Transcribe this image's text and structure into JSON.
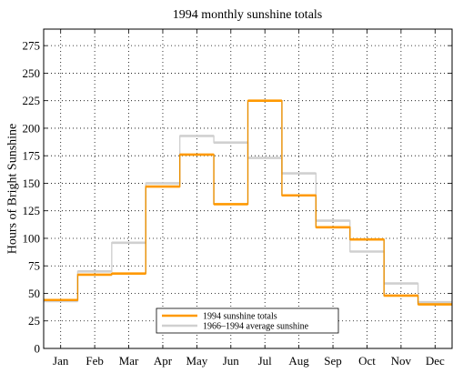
{
  "chart_data": {
    "type": "line",
    "step": true,
    "title": "1994 monthly sunshine totals",
    "xlabel": "",
    "ylabel": "Hours of Bright Sunshine",
    "categories": [
      "Jan",
      "Feb",
      "Mar",
      "Apr",
      "May",
      "Jun",
      "Jul",
      "Aug",
      "Sep",
      "Oct",
      "Nov",
      "Dec"
    ],
    "ylim": [
      0,
      290
    ],
    "yticks": [
      0,
      25,
      50,
      75,
      100,
      125,
      150,
      175,
      200,
      225,
      250,
      275
    ],
    "grid": true,
    "legend_position": "bottom-center",
    "series": [
      {
        "name": "1994 sunshine totals",
        "color": "#ff9900",
        "values": [
          44,
          67,
          68,
          147,
          176,
          131,
          225,
          139,
          110,
          99,
          48,
          40
        ]
      },
      {
        "name": "1966–1994 average sunshine",
        "color": "#d0d0d0",
        "values": [
          43,
          70,
          96,
          150,
          193,
          187,
          173,
          159,
          116,
          88,
          59,
          42
        ]
      }
    ]
  }
}
